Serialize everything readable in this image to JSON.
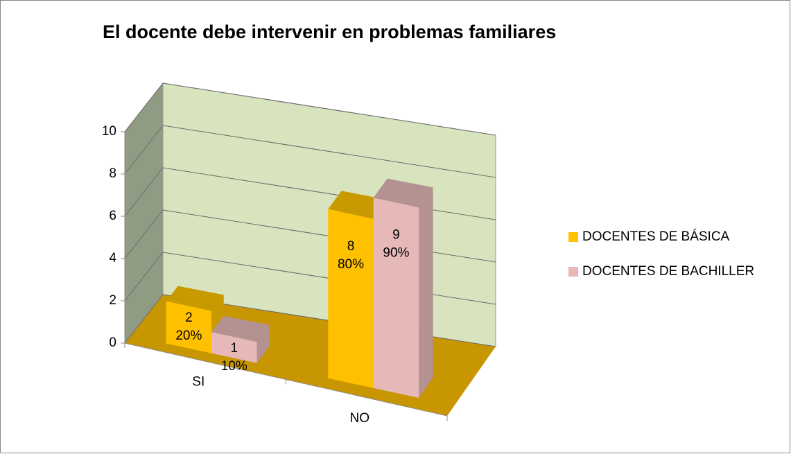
{
  "chart_data": {
    "type": "bar3d",
    "title": "El docente debe intervenir en problemas familiares",
    "categories": [
      "SI",
      "NO"
    ],
    "series": [
      {
        "name": "DOCENTES DE BÁSICA",
        "color": "#ffc000",
        "shade": "#c89a00",
        "values": [
          2,
          8
        ],
        "percent_labels": [
          "20%",
          "80%"
        ]
      },
      {
        "name": "DOCENTES DE BACHILLER",
        "color": "#e6b9b8",
        "shade": "#b39291",
        "values": [
          1,
          9
        ],
        "percent_labels": [
          "10%",
          "90%"
        ]
      }
    ],
    "ylim": [
      0,
      10
    ],
    "yticks": [
      0,
      2,
      4,
      6,
      8,
      10
    ],
    "grid": true,
    "legend": "right",
    "floor_color": "#c89600",
    "wall_color": "#d7e4bd",
    "side_wall_color": "#8f9c83"
  }
}
